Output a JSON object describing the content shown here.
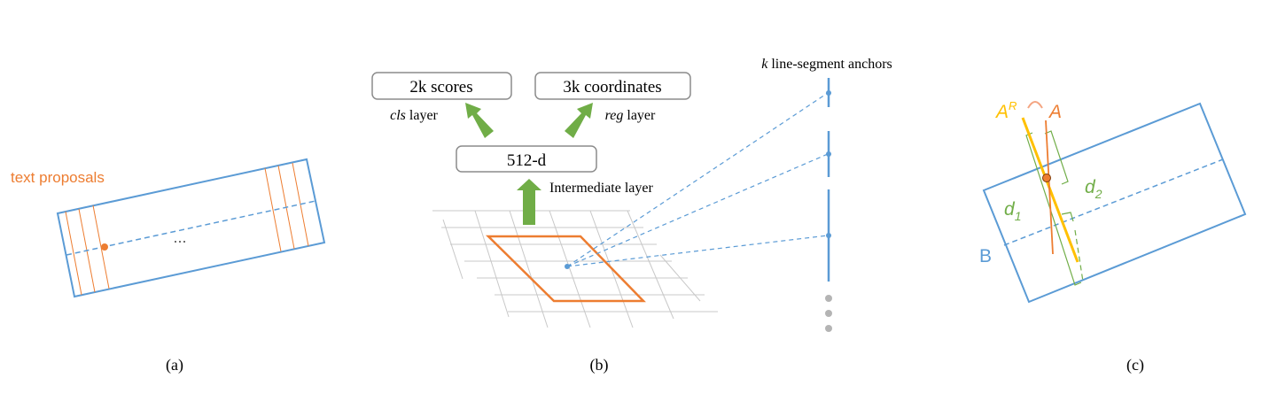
{
  "panel_a": {
    "label_text_proposals": "text proposals",
    "ellipsis": "...",
    "caption": "(a)"
  },
  "panel_b": {
    "scores_box": "2k scores",
    "coords_box": "3k coordinates",
    "cls_italic": "cls",
    "cls_rest": " layer",
    "reg_italic": "reg",
    "reg_rest": " layer",
    "feature_box": "512-d",
    "intermediate_label": "Intermediate layer",
    "anchors_k": "k",
    "anchors_rest": " line-segment anchors",
    "caption": "(b)"
  },
  "panel_c": {
    "label_AR_base": "A",
    "label_AR_sup": "R",
    "label_A": "A",
    "label_d1_base": "d",
    "label_d1_sub": "1",
    "label_d2_base": "d",
    "label_d2_sub": "2",
    "label_B": "B",
    "caption": "(c)"
  },
  "colors": {
    "blue": "#5b9bd5",
    "orange": "#ed7d31",
    "green": "#70ad47",
    "yellow": "#ffc000",
    "grid": "#c8c8c8",
    "box_stroke": "#8c8c8c",
    "dots": "#b4b4b4"
  }
}
